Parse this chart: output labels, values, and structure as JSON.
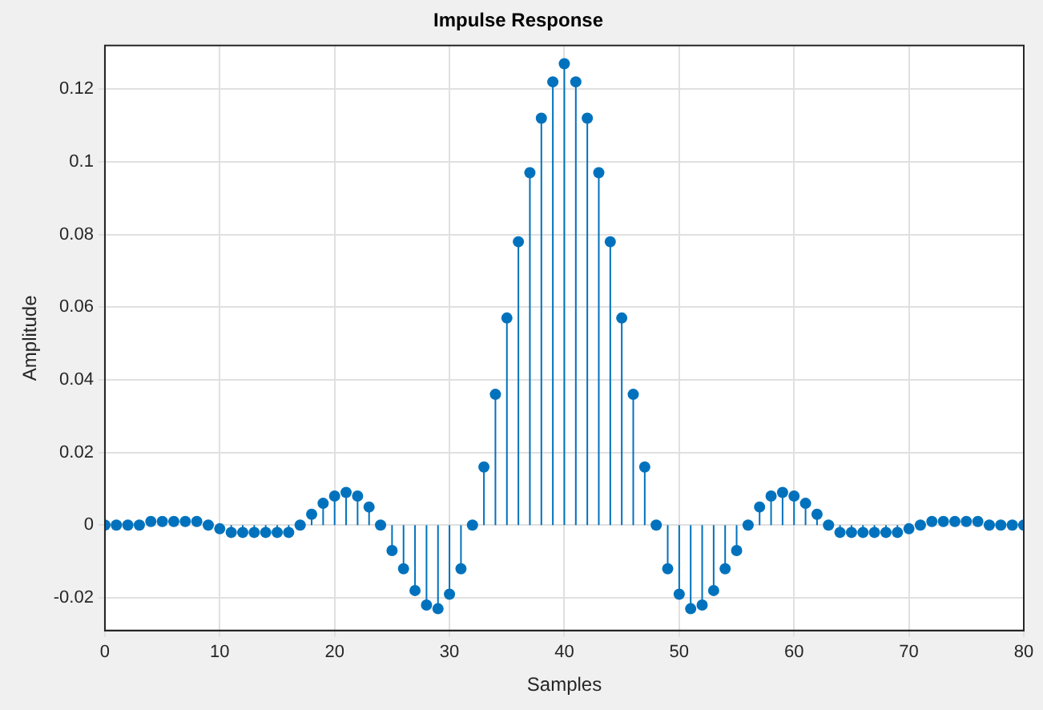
{
  "chart_data": {
    "type": "lollipop",
    "title": "Impulse Response",
    "xlabel": "Samples",
    "ylabel": "Amplitude",
    "x": [
      0,
      1,
      2,
      3,
      4,
      5,
      6,
      7,
      8,
      9,
      10,
      11,
      12,
      13,
      14,
      15,
      16,
      17,
      18,
      19,
      20,
      21,
      22,
      23,
      24,
      25,
      26,
      27,
      28,
      29,
      30,
      31,
      32,
      33,
      34,
      35,
      36,
      37,
      38,
      39,
      40,
      41,
      42,
      43,
      44,
      45,
      46,
      47,
      48,
      49,
      50,
      51,
      52,
      53,
      54,
      55,
      56,
      57,
      58,
      59,
      60,
      61,
      62,
      63,
      64,
      65,
      66,
      67,
      68,
      69,
      70,
      71,
      72,
      73,
      74,
      75,
      76,
      77,
      78,
      79,
      80
    ],
    "series": [
      {
        "color": "#0072bd",
        "values": [
          0,
          0,
          0,
          0,
          0.001,
          0.001,
          0.001,
          0.001,
          0.001,
          0,
          -0.001,
          -0.002,
          -0.002,
          -0.002,
          -0.002,
          -0.002,
          -0.002,
          0,
          0.003,
          0.006,
          0.008,
          0.009,
          0.008,
          0.005,
          0,
          -0.007,
          -0.012,
          -0.018,
          -0.022,
          -0.023,
          -0.019,
          -0.012,
          0,
          0.016,
          0.036,
          0.057,
          0.078,
          0.097,
          0.112,
          0.122,
          0.127,
          0.122,
          0.112,
          0.097,
          0.078,
          0.057,
          0.036,
          0.016,
          0,
          -0.012,
          -0.019,
          -0.023,
          -0.022,
          -0.018,
          -0.012,
          -0.007,
          0,
          0.005,
          0.008,
          0.009,
          0.008,
          0.006,
          0.003,
          0,
          -0.002,
          -0.002,
          -0.002,
          -0.002,
          -0.002,
          -0.002,
          -0.001,
          0,
          0.001,
          0.001,
          0.001,
          0.001,
          0.001,
          0,
          0,
          0,
          0
        ]
      }
    ],
    "xlim": [
      0,
      80
    ],
    "xticks": [
      0,
      10,
      20,
      30,
      40,
      50,
      60,
      70,
      80
    ],
    "ylim": [
      -0.029,
      0.132
    ],
    "yticks": [
      -0.02,
      0,
      0.02,
      0.04,
      0.06,
      0.08,
      0.1,
      0.12
    ],
    "grid": true,
    "marker": "circle",
    "legend": false
  }
}
